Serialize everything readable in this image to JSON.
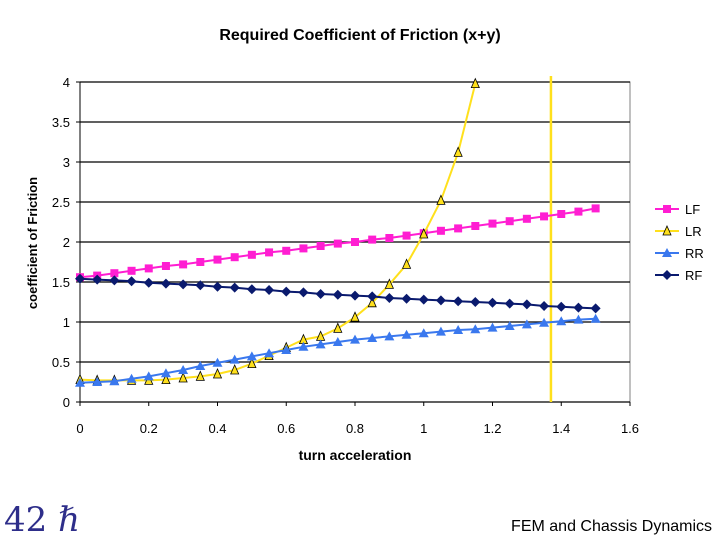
{
  "slide": {
    "number_label": "42 ℏ",
    "footer": "FEM and Chassis Dynamics"
  },
  "chart_data": {
    "type": "line",
    "title": "Required Coefficient of Friction (x+y)",
    "xlabel": "turn acceleration",
    "ylabel": "coefficient of Friction",
    "xlim": [
      0,
      1.6
    ],
    "ylim": [
      0,
      4
    ],
    "xticks": [
      "0",
      "0.2",
      "0.4",
      "0.6",
      "0.8",
      "1",
      "1.2",
      "1.4",
      "1.6"
    ],
    "yticks": [
      "0",
      "0.5",
      "1",
      "1.5",
      "2",
      "2.5",
      "3",
      "3.5",
      "4"
    ],
    "grid": "horizontal",
    "legend_position": "right",
    "x": [
      0,
      0.05,
      0.1,
      0.15,
      0.2,
      0.25,
      0.3,
      0.35,
      0.4,
      0.45,
      0.5,
      0.55,
      0.6,
      0.65,
      0.7,
      0.75,
      0.8,
      0.85,
      0.9,
      0.95,
      1.0,
      1.05,
      1.1,
      1.15,
      1.2,
      1.25,
      1.3,
      1.35,
      1.4,
      1.45,
      1.5
    ],
    "series": [
      {
        "name": "LF",
        "color": "#ff1ed2",
        "marker": "square",
        "values": [
          1.56,
          1.58,
          1.61,
          1.64,
          1.67,
          1.7,
          1.72,
          1.75,
          1.78,
          1.81,
          1.84,
          1.87,
          1.89,
          1.92,
          1.95,
          1.98,
          2.0,
          2.03,
          2.05,
          2.08,
          2.11,
          2.14,
          2.17,
          2.2,
          2.23,
          2.26,
          2.29,
          2.32,
          2.35,
          2.38,
          2.42
        ]
      },
      {
        "name": "LR",
        "color": "#ffe01c",
        "marker": "triangle-open",
        "values": [
          0.28,
          0.27,
          0.27,
          0.27,
          0.27,
          0.28,
          0.3,
          0.32,
          0.35,
          0.4,
          0.48,
          0.58,
          0.68,
          0.78,
          0.82,
          0.92,
          1.06,
          1.24,
          1.47,
          1.72,
          2.1,
          2.52,
          3.12,
          3.98,
          null,
          null,
          null,
          null,
          null,
          null,
          null
        ]
      },
      {
        "name": "RR",
        "color": "#3a78ee",
        "marker": "triangle",
        "values": [
          0.24,
          0.25,
          0.26,
          0.29,
          0.32,
          0.36,
          0.4,
          0.45,
          0.49,
          0.53,
          0.57,
          0.61,
          0.65,
          0.69,
          0.72,
          0.75,
          0.78,
          0.8,
          0.82,
          0.84,
          0.86,
          0.88,
          0.9,
          0.91,
          0.93,
          0.95,
          0.97,
          0.99,
          1.01,
          1.03,
          1.04
        ]
      },
      {
        "name": "RF",
        "color": "#0a1a6e",
        "marker": "diamond",
        "values": [
          1.54,
          1.53,
          1.52,
          1.51,
          1.49,
          1.48,
          1.47,
          1.46,
          1.44,
          1.43,
          1.41,
          1.4,
          1.38,
          1.37,
          1.35,
          1.34,
          1.33,
          1.32,
          1.3,
          1.29,
          1.28,
          1.27,
          1.26,
          1.25,
          1.24,
          1.23,
          1.22,
          1.2,
          1.19,
          1.18,
          1.17
        ]
      }
    ],
    "vertical_line": {
      "x": 1.37,
      "color": "#ffe01c"
    }
  }
}
